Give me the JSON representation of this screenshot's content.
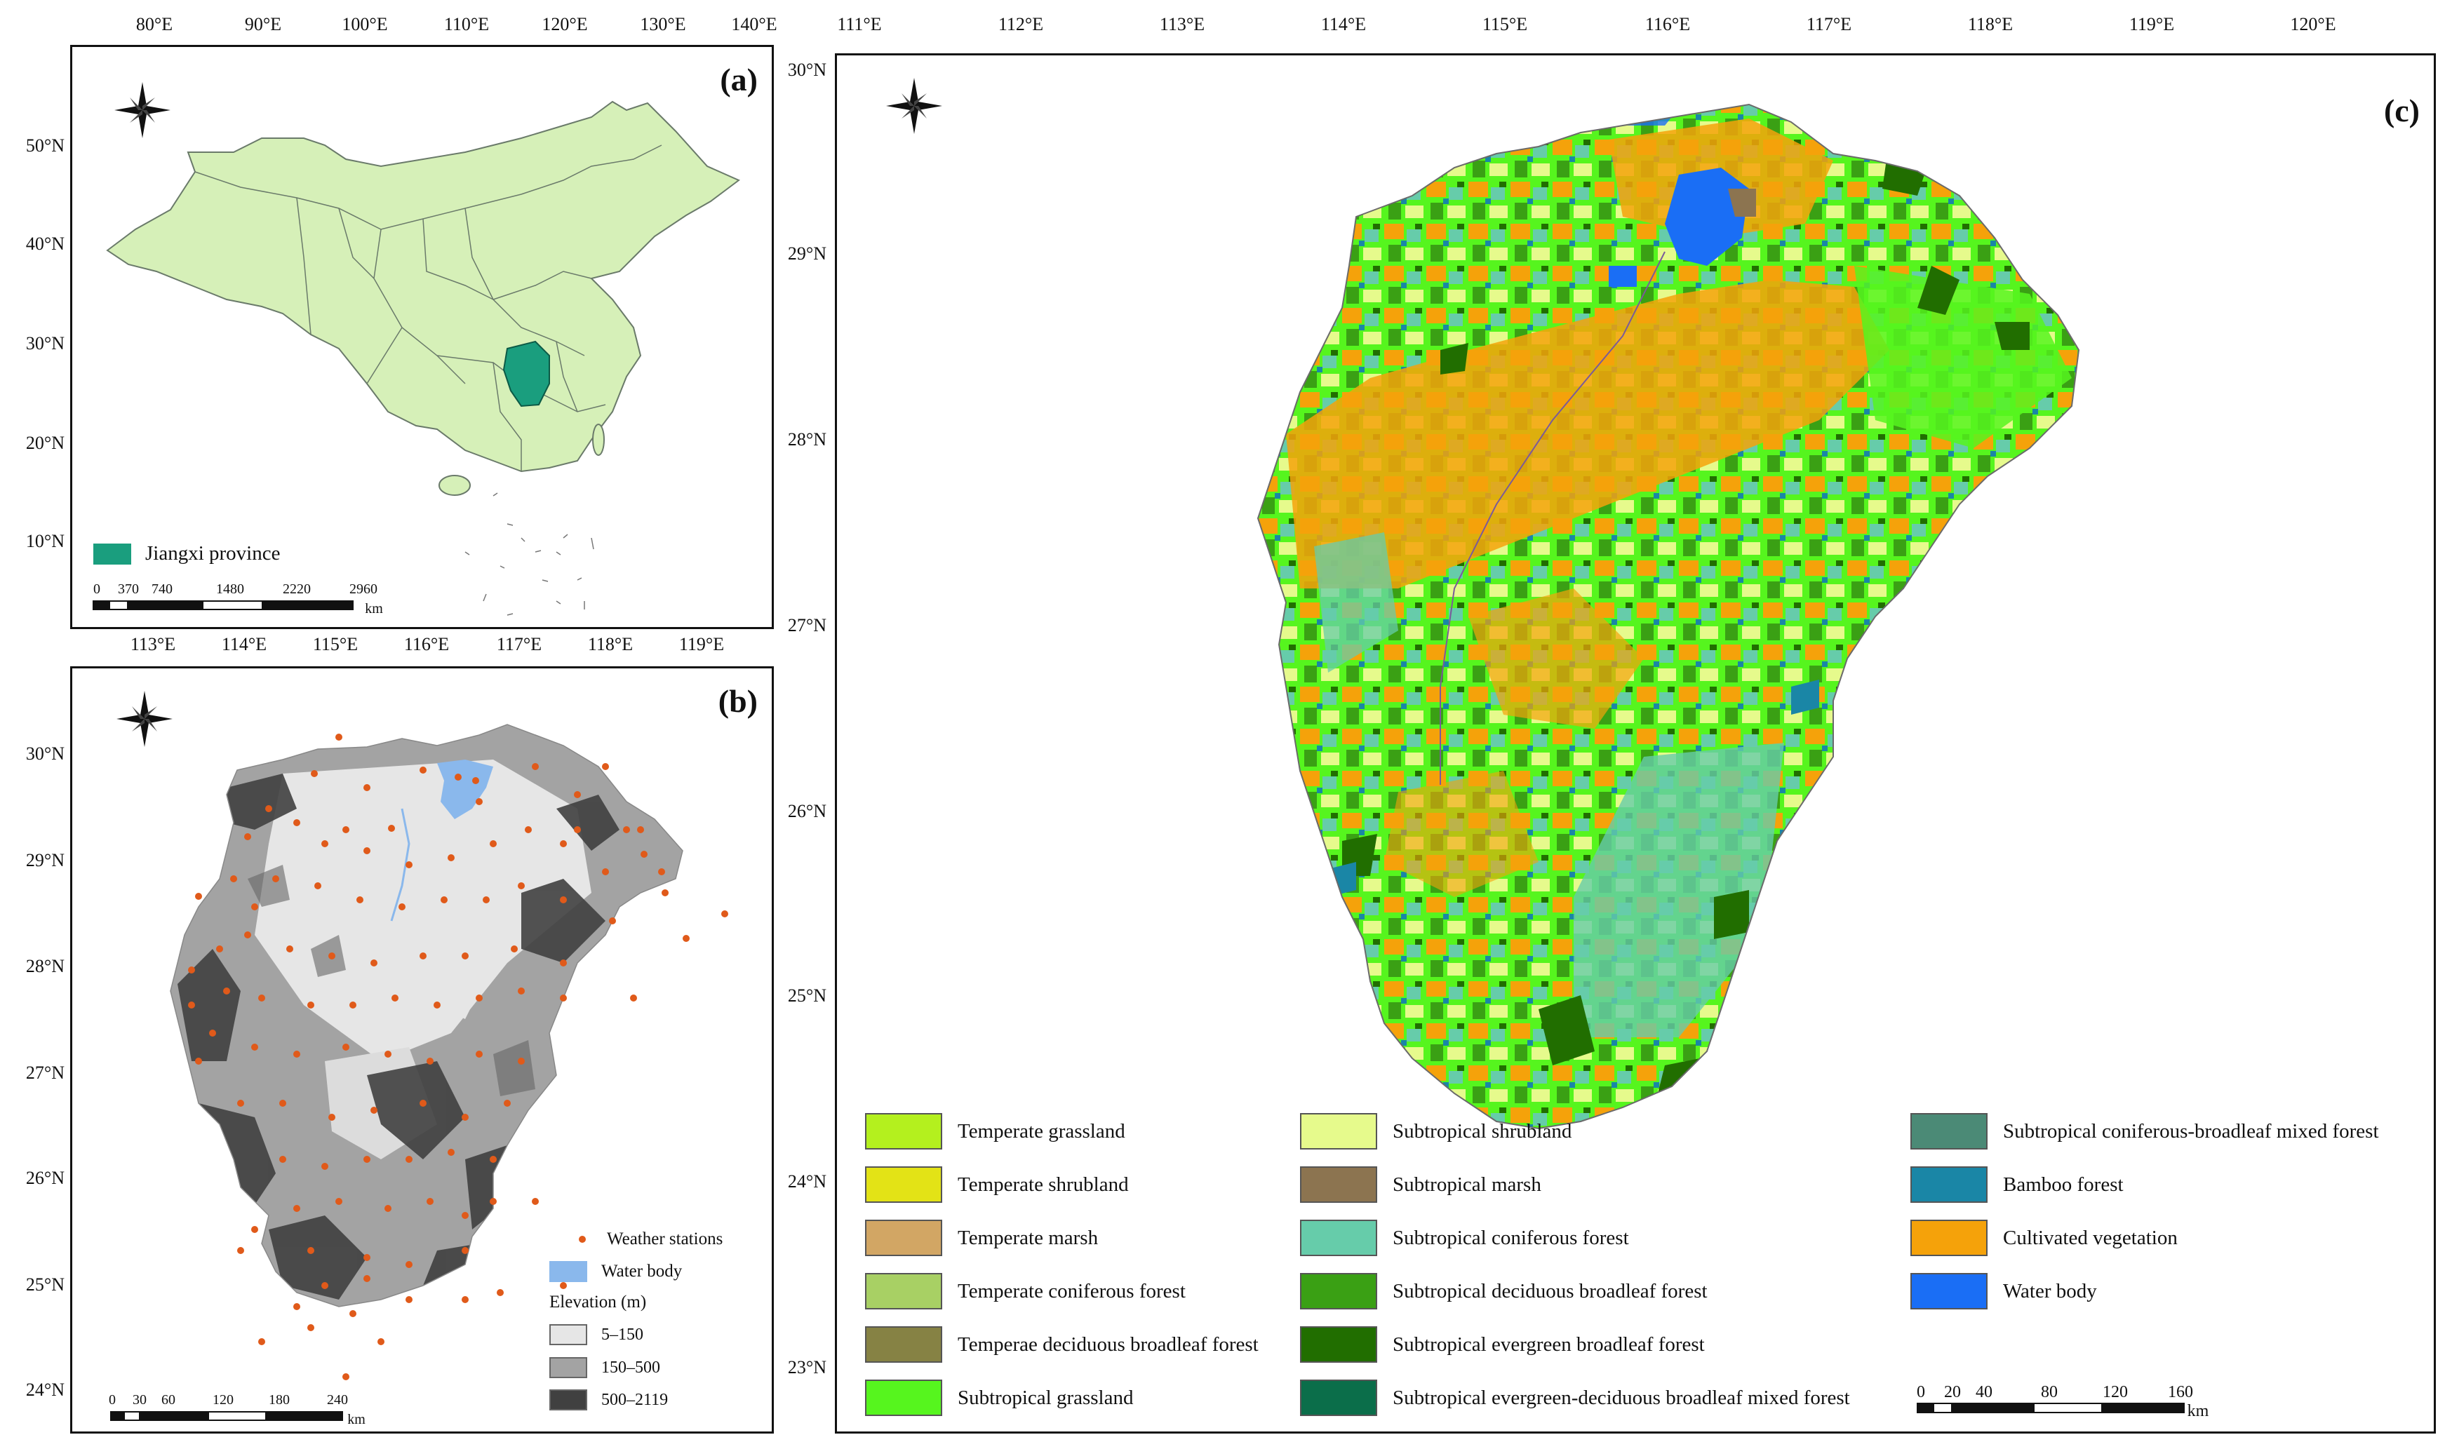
{
  "panel_a": {
    "tag": "(a)",
    "lon_ticks": [
      "80°E",
      "90°E",
      "100°E",
      "110°E",
      "120°E",
      "130°E",
      "140°E"
    ],
    "lat_ticks": [
      "50°N",
      "40°N",
      "30°N",
      "20°N",
      "10°N"
    ],
    "legend_label": "Jiangxi province",
    "scale_ticks": [
      "0",
      "370",
      "740",
      "1480",
      "2220",
      "2960"
    ],
    "scale_unit": "km",
    "colors": {
      "china": "#d6f0b8",
      "jiangxi": "#1a9e7e",
      "border": "#6a7a6a"
    }
  },
  "panel_b": {
    "tag": "(b)",
    "lon_ticks": [
      "113°E",
      "114°E",
      "115°E",
      "116°E",
      "117°E",
      "118°E",
      "119°E"
    ],
    "lat_ticks": [
      "30°N",
      "29°N",
      "28°N",
      "27°N",
      "26°N",
      "25°N",
      "24°N"
    ],
    "legend": {
      "stations": "Weather stations",
      "water": "Water body",
      "elevation_title": "Elevation (m)",
      "classes": [
        {
          "label": "5–150",
          "color": "#e6e6e6"
        },
        {
          "label": "150–500",
          "color": "#a3a3a3"
        },
        {
          "label": "500–2119",
          "color": "#404040"
        }
      ]
    },
    "scale_ticks": [
      "0",
      "30",
      "60",
      "120",
      "180",
      "240"
    ],
    "scale_unit": "km",
    "colors": {
      "station": "#e05a1a",
      "water": "#8ab8ec"
    }
  },
  "panel_c": {
    "tag": "(c)",
    "lon_ticks": [
      "111°E",
      "112°E",
      "113°E",
      "114°E",
      "115°E",
      "116°E",
      "117°E",
      "118°E",
      "119°E",
      "120°E"
    ],
    "lat_ticks": [
      "30°N",
      "29°N",
      "28°N",
      "27°N",
      "26°N",
      "25°N",
      "24°N",
      "23°N"
    ],
    "legend": [
      {
        "label": "Temperate grassland",
        "color": "#b4f01e"
      },
      {
        "label": "Temperate shrubland",
        "color": "#e3e316"
      },
      {
        "label": "Temperate marsh",
        "color": "#d2a664"
      },
      {
        "label": "Temperate coniferous forest",
        "color": "#a8d064"
      },
      {
        "label": "Temperae deciduous broadleaf forest",
        "color": "#868244"
      },
      {
        "label": "Subtropical grassland",
        "color": "#56f51e"
      },
      {
        "label": "Subtropical shrubland",
        "color": "#e6fa8c"
      },
      {
        "label": "Subtropical marsh",
        "color": "#8c7450"
      },
      {
        "label": "Subtropical coniferous forest",
        "color": "#66ccaa"
      },
      {
        "label": "Subtropical deciduous broadleaf forest",
        "color": "#3aa014"
      },
      {
        "label": "Subtropical evergreen broadleaf forest",
        "color": "#216e00"
      },
      {
        "label": "Subtropical evergreen-deciduous broadleaf mixed forest",
        "color": "#0b6e4a"
      },
      {
        "label": "Subtropical coniferous-broadleaf mixed forest",
        "color": "#4b8a76"
      },
      {
        "label": "Bamboo forest",
        "color": "#1a86a6"
      },
      {
        "label": "Cultivated vegetation",
        "color": "#f5a20a"
      },
      {
        "label": "Water body",
        "color": "#1a6ef5"
      }
    ],
    "scale_ticks": [
      "0",
      "20",
      "40",
      "80",
      "120",
      "160"
    ],
    "scale_unit": "km"
  }
}
